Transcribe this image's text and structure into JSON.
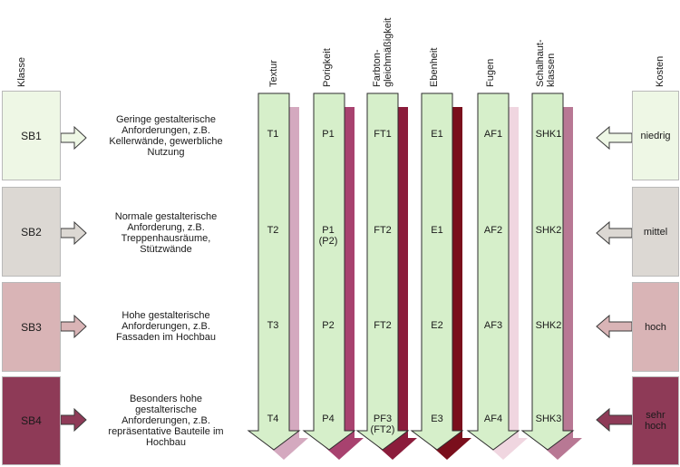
{
  "headers": {
    "klasse": "Klasse",
    "kosten": "Kosten",
    "columns": [
      "Textur",
      "Porigkeit",
      "Farbton-\ngleichmäßigkeit",
      "Ebenheit",
      "Fugen",
      "Schalhaut-\nklassen"
    ]
  },
  "rows": [
    {
      "class": "SB1",
      "description": "Geringe gestalterische\nAnforderungen, z.B.\nKellerwände, gewerbliche\nNutzung",
      "cells": [
        "T1",
        "P1",
        "FT1",
        "E1",
        "AF1",
        "SHK1"
      ],
      "cost": "niedrig",
      "color": "#eef7e5"
    },
    {
      "class": "SB2",
      "description": "Normale gestalterische\nAnforderung, z.B.\nTreppenhausräume,\nStützwände",
      "cells": [
        "T2",
        "P1\n(P2)",
        "FT2",
        "E1",
        "AF2",
        "SHK2"
      ],
      "cost": "mittel",
      "color": "#dcd8d3"
    },
    {
      "class": "SB3",
      "description": "Hohe gestalterische\nAnforderungen, z.B.\nFassaden im Hochbau",
      "cells": [
        "T3",
        "P2",
        "FT2",
        "E2",
        "AF3",
        "SHK2"
      ],
      "cost": "hoch",
      "color": "#d9b4b6"
    },
    {
      "class": "SB4",
      "description": "Besonders hohe\ngestalterische\nAnforderungen, z.B.\nrepräsentative Bauteile im\nHochbau",
      "cells": [
        "T4",
        "P4",
        "PF3\n(FT2)",
        "E3",
        "AF4",
        "SHK3"
      ],
      "cost": "sehr\nhoch",
      "color": "#8e3a57"
    }
  ],
  "colors": {
    "arrow_fill": "#d6efca",
    "arrow_stroke": "#2d2d2d",
    "shadows": [
      "#d4a9bf",
      "#a8426f",
      "#8b1c3b",
      "#7a0f1c",
      "#f0d6e0",
      "#b87894"
    ]
  }
}
